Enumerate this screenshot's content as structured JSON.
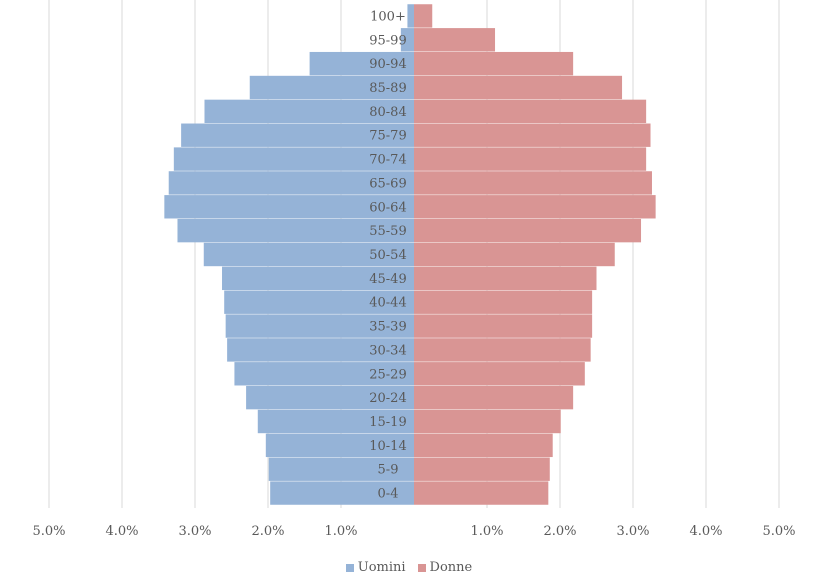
{
  "chart_data": {
    "type": "bar",
    "orientation": "horizontal-population-pyramid",
    "title": "",
    "xlabel": "",
    "ylabel": "",
    "categories": [
      "0-4",
      "5-9",
      "10-14",
      "15-19",
      "20-24",
      "25-29",
      "30-34",
      "35-39",
      "40-44",
      "45-49",
      "50-54",
      "55-59",
      "60-64",
      "65-69",
      "70-74",
      "75-79",
      "80-84",
      "85-89",
      "90-94",
      "95-99",
      "100+"
    ],
    "series": [
      {
        "name": "Uomini",
        "color": "#95b3d7",
        "side": "left",
        "values": [
          1.97,
          1.99,
          2.03,
          2.14,
          2.3,
          2.46,
          2.56,
          2.58,
          2.6,
          2.63,
          2.88,
          3.24,
          3.42,
          3.36,
          3.29,
          3.19,
          2.87,
          2.25,
          1.43,
          0.18,
          0.09
        ]
      },
      {
        "name": "Donne",
        "color": "#d99594",
        "side": "right",
        "values": [
          1.84,
          1.86,
          1.9,
          2.01,
          2.18,
          2.34,
          2.42,
          2.44,
          2.44,
          2.5,
          2.75,
          3.11,
          3.31,
          3.26,
          3.18,
          3.24,
          3.18,
          2.85,
          2.18,
          1.11,
          0.25
        ]
      }
    ],
    "xlim": [
      -5.0,
      5.0
    ],
    "x_ticks_left": [
      "5.0%",
      "4.0%",
      "3.0%",
      "2.0%",
      "1.0%"
    ],
    "x_ticks_right": [
      "1.0%",
      "2.0%",
      "3.0%",
      "4.0%",
      "5.0%"
    ],
    "grid": true,
    "legend": "bottom-center"
  }
}
